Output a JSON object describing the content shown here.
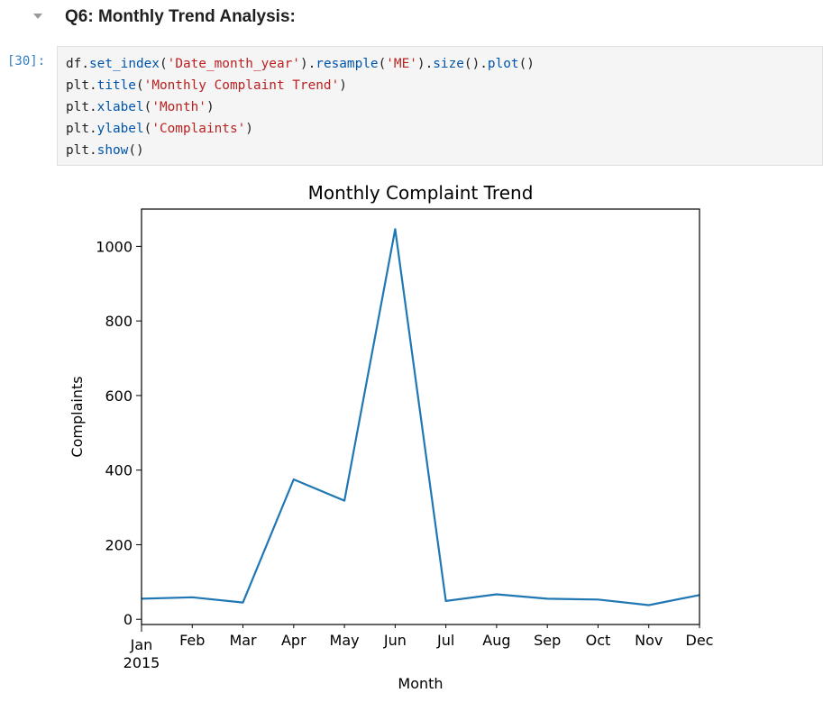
{
  "heading": {
    "text": "Q6: Monthly Trend Analysis:"
  },
  "cell": {
    "execution_count": "[30]:",
    "code_lines": [
      [
        {
          "t": "df.",
          "c": "plain"
        },
        {
          "t": "set_index",
          "c": "fn"
        },
        {
          "t": "(",
          "c": "plain"
        },
        {
          "t": "'Date_month_year'",
          "c": "str"
        },
        {
          "t": ").",
          "c": "plain"
        },
        {
          "t": "resample",
          "c": "fn"
        },
        {
          "t": "(",
          "c": "plain"
        },
        {
          "t": "'ME'",
          "c": "str"
        },
        {
          "t": ").",
          "c": "plain"
        },
        {
          "t": "size",
          "c": "fn"
        },
        {
          "t": "().",
          "c": "plain"
        },
        {
          "t": "plot",
          "c": "fn"
        },
        {
          "t": "()",
          "c": "plain"
        }
      ],
      [
        {
          "t": "plt.",
          "c": "plain"
        },
        {
          "t": "title",
          "c": "fn"
        },
        {
          "t": "(",
          "c": "plain"
        },
        {
          "t": "'Monthly Complaint Trend'",
          "c": "str"
        },
        {
          "t": ")",
          "c": "plain"
        }
      ],
      [
        {
          "t": "plt.",
          "c": "plain"
        },
        {
          "t": "xlabel",
          "c": "fn"
        },
        {
          "t": "(",
          "c": "plain"
        },
        {
          "t": "'Month'",
          "c": "str"
        },
        {
          "t": ")",
          "c": "plain"
        }
      ],
      [
        {
          "t": "plt.",
          "c": "plain"
        },
        {
          "t": "ylabel",
          "c": "fn"
        },
        {
          "t": "(",
          "c": "plain"
        },
        {
          "t": "'Complaints'",
          "c": "str"
        },
        {
          "t": ")",
          "c": "plain"
        }
      ],
      [
        {
          "t": "plt.",
          "c": "plain"
        },
        {
          "t": "show",
          "c": "fn"
        },
        {
          "t": "()",
          "c": "plain"
        }
      ]
    ]
  },
  "chart_data": {
    "type": "line",
    "title": "Monthly Complaint Trend",
    "xlabel": "Month",
    "ylabel": "Complaints",
    "categories": [
      "Jan",
      "Feb",
      "Mar",
      "Apr",
      "May",
      "Jun",
      "Jul",
      "Aug",
      "Sep",
      "Oct",
      "Nov",
      "Dec"
    ],
    "x_year_label": "2015",
    "values": [
      55,
      59,
      45,
      375,
      318,
      1046,
      49,
      67,
      55,
      53,
      38,
      65
    ],
    "ylim": [
      -14,
      1100
    ],
    "yticks": [
      0,
      200,
      400,
      600,
      800,
      1000
    ],
    "line_color": "#1f77b4",
    "grid": false,
    "legend": "none"
  }
}
